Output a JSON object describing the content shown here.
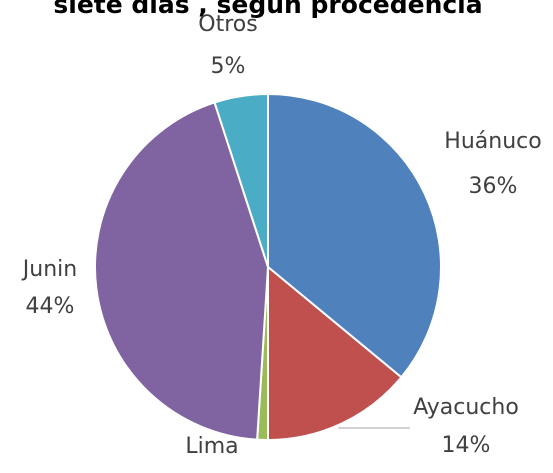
{
  "chart_data": {
    "type": "pie",
    "title": "siete días , según procedencia",
    "categories": [
      "Huánuco",
      "Ayacucho",
      "Lima",
      "Junin",
      "Otros"
    ],
    "values": [
      36,
      14,
      1,
      44,
      5
    ],
    "value_labels": [
      "36%",
      "14%",
      null,
      "44%",
      "5%"
    ],
    "colors": [
      "#4f81bd",
      "#c0504d",
      "#9bbb59",
      "#8064a2",
      "#4bacc6"
    ]
  }
}
